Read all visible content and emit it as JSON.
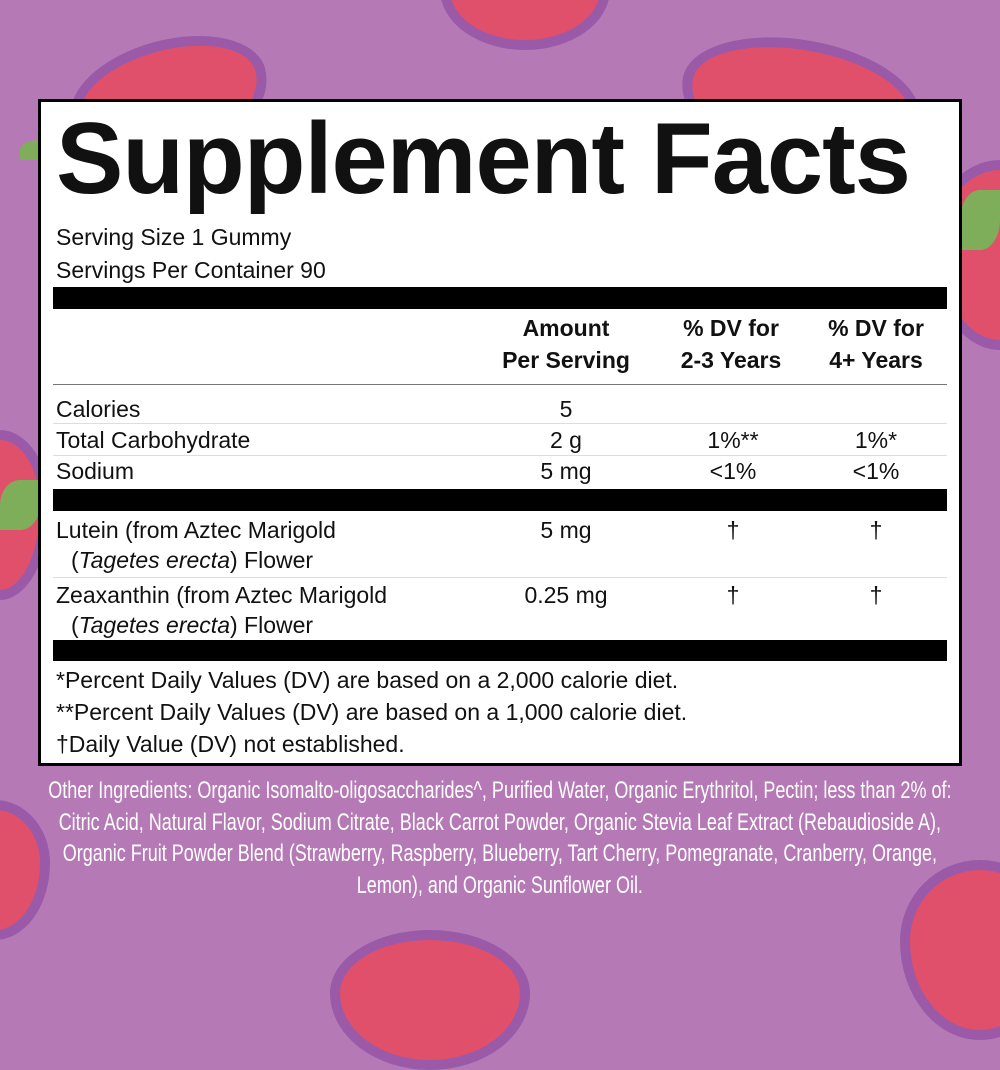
{
  "title": "Supplement Facts",
  "serving_size": "Serving Size 1 Gummy",
  "servings_per_container": "Servings Per Container 90",
  "headers": {
    "amount": [
      "Amount",
      "Per Serving"
    ],
    "dv_2_3": [
      "% DV for",
      "2-3 Years"
    ],
    "dv_4": [
      "% DV for",
      "4+ Years"
    ]
  },
  "rows": [
    {
      "name": "Calories",
      "amount": "5",
      "dv_2_3": "",
      "dv_4": ""
    },
    {
      "name": "Total Carbohydrate",
      "amount": "2 g",
      "dv_2_3": "1%**",
      "dv_4": "1%*"
    },
    {
      "name": "Sodium",
      "amount": "5 mg",
      "dv_2_3": "<1%",
      "dv_4": "<1%"
    }
  ],
  "botanicals": [
    {
      "name": "Lutein (from Aztec Marigold",
      "latin": "Tagetes erecta",
      "suffix": ") Flower",
      "amount": "5 mg",
      "dv_2_3": "†",
      "dv_4": "†"
    },
    {
      "name": "Zeaxanthin (from Aztec Marigold",
      "latin": "Tagetes erecta",
      "suffix": ") Flower",
      "amount": "0.25 mg",
      "dv_2_3": "†",
      "dv_4": "†"
    }
  ],
  "footnotes": [
    "*Percent Daily Values (DV) are based on a 2,000 calorie diet.",
    "**Percent Daily Values (DV) are based on a 1,000 calorie diet.",
    "†Daily Value (DV) not established."
  ],
  "other_ingredients": "Other Ingredients: Organic Isomalto-oligosaccharides^, Purified Water, Organic Erythritol, Pectin; less than 2% of: Citric Acid, Natural Flavor, Sodium Citrate, Black Carrot Powder, Organic Stevia Leaf Extract (Rebaudioside A), Organic Fruit Powder Blend (Strawberry, Raspberry, Blueberry, Tart Cherry, Pomegranate, Cranberry, Orange, Lemon), and Organic Sunflower Oil.",
  "colors": {
    "background": "#b57ab5",
    "strawberry": "#e0506a",
    "label": "#ffffff"
  }
}
